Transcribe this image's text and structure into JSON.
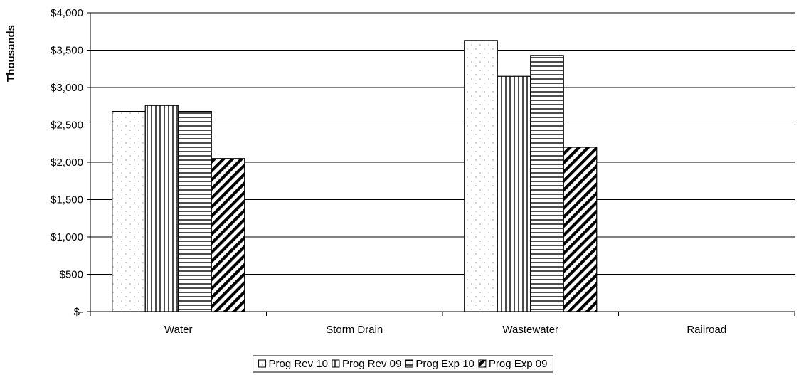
{
  "chart_data": {
    "type": "bar",
    "title": "",
    "xlabel": "",
    "ylabel": "Thousands",
    "ylim": [
      0,
      4000
    ],
    "y_tick_step": 500,
    "y_tick_labels": [
      "$-",
      "$500",
      "$1,000",
      "$1,500",
      "$2,000",
      "$2,500",
      "$3,000",
      "$3,500",
      "$4,000"
    ],
    "grid": true,
    "legend_position": "bottom",
    "categories": [
      "Water",
      "Storm Drain",
      "Wastewater",
      "Railroad"
    ],
    "series": [
      {
        "name": "Prog Rev 10",
        "pattern": "dots",
        "values": [
          2680,
          null,
          3630,
          null
        ]
      },
      {
        "name": "Prog Rev 09",
        "pattern": "vertical",
        "values": [
          2760,
          null,
          3150,
          null
        ]
      },
      {
        "name": "Prog Exp 10",
        "pattern": "horizontal",
        "values": [
          2680,
          null,
          3430,
          null
        ]
      },
      {
        "name": "Prog Exp 09",
        "pattern": "diagonal",
        "values": [
          2050,
          null,
          2200,
          null
        ]
      }
    ],
    "colors": {
      "bar_fill": "#ffffff",
      "stroke": "#000000",
      "dot": "#b0b0b0"
    }
  }
}
